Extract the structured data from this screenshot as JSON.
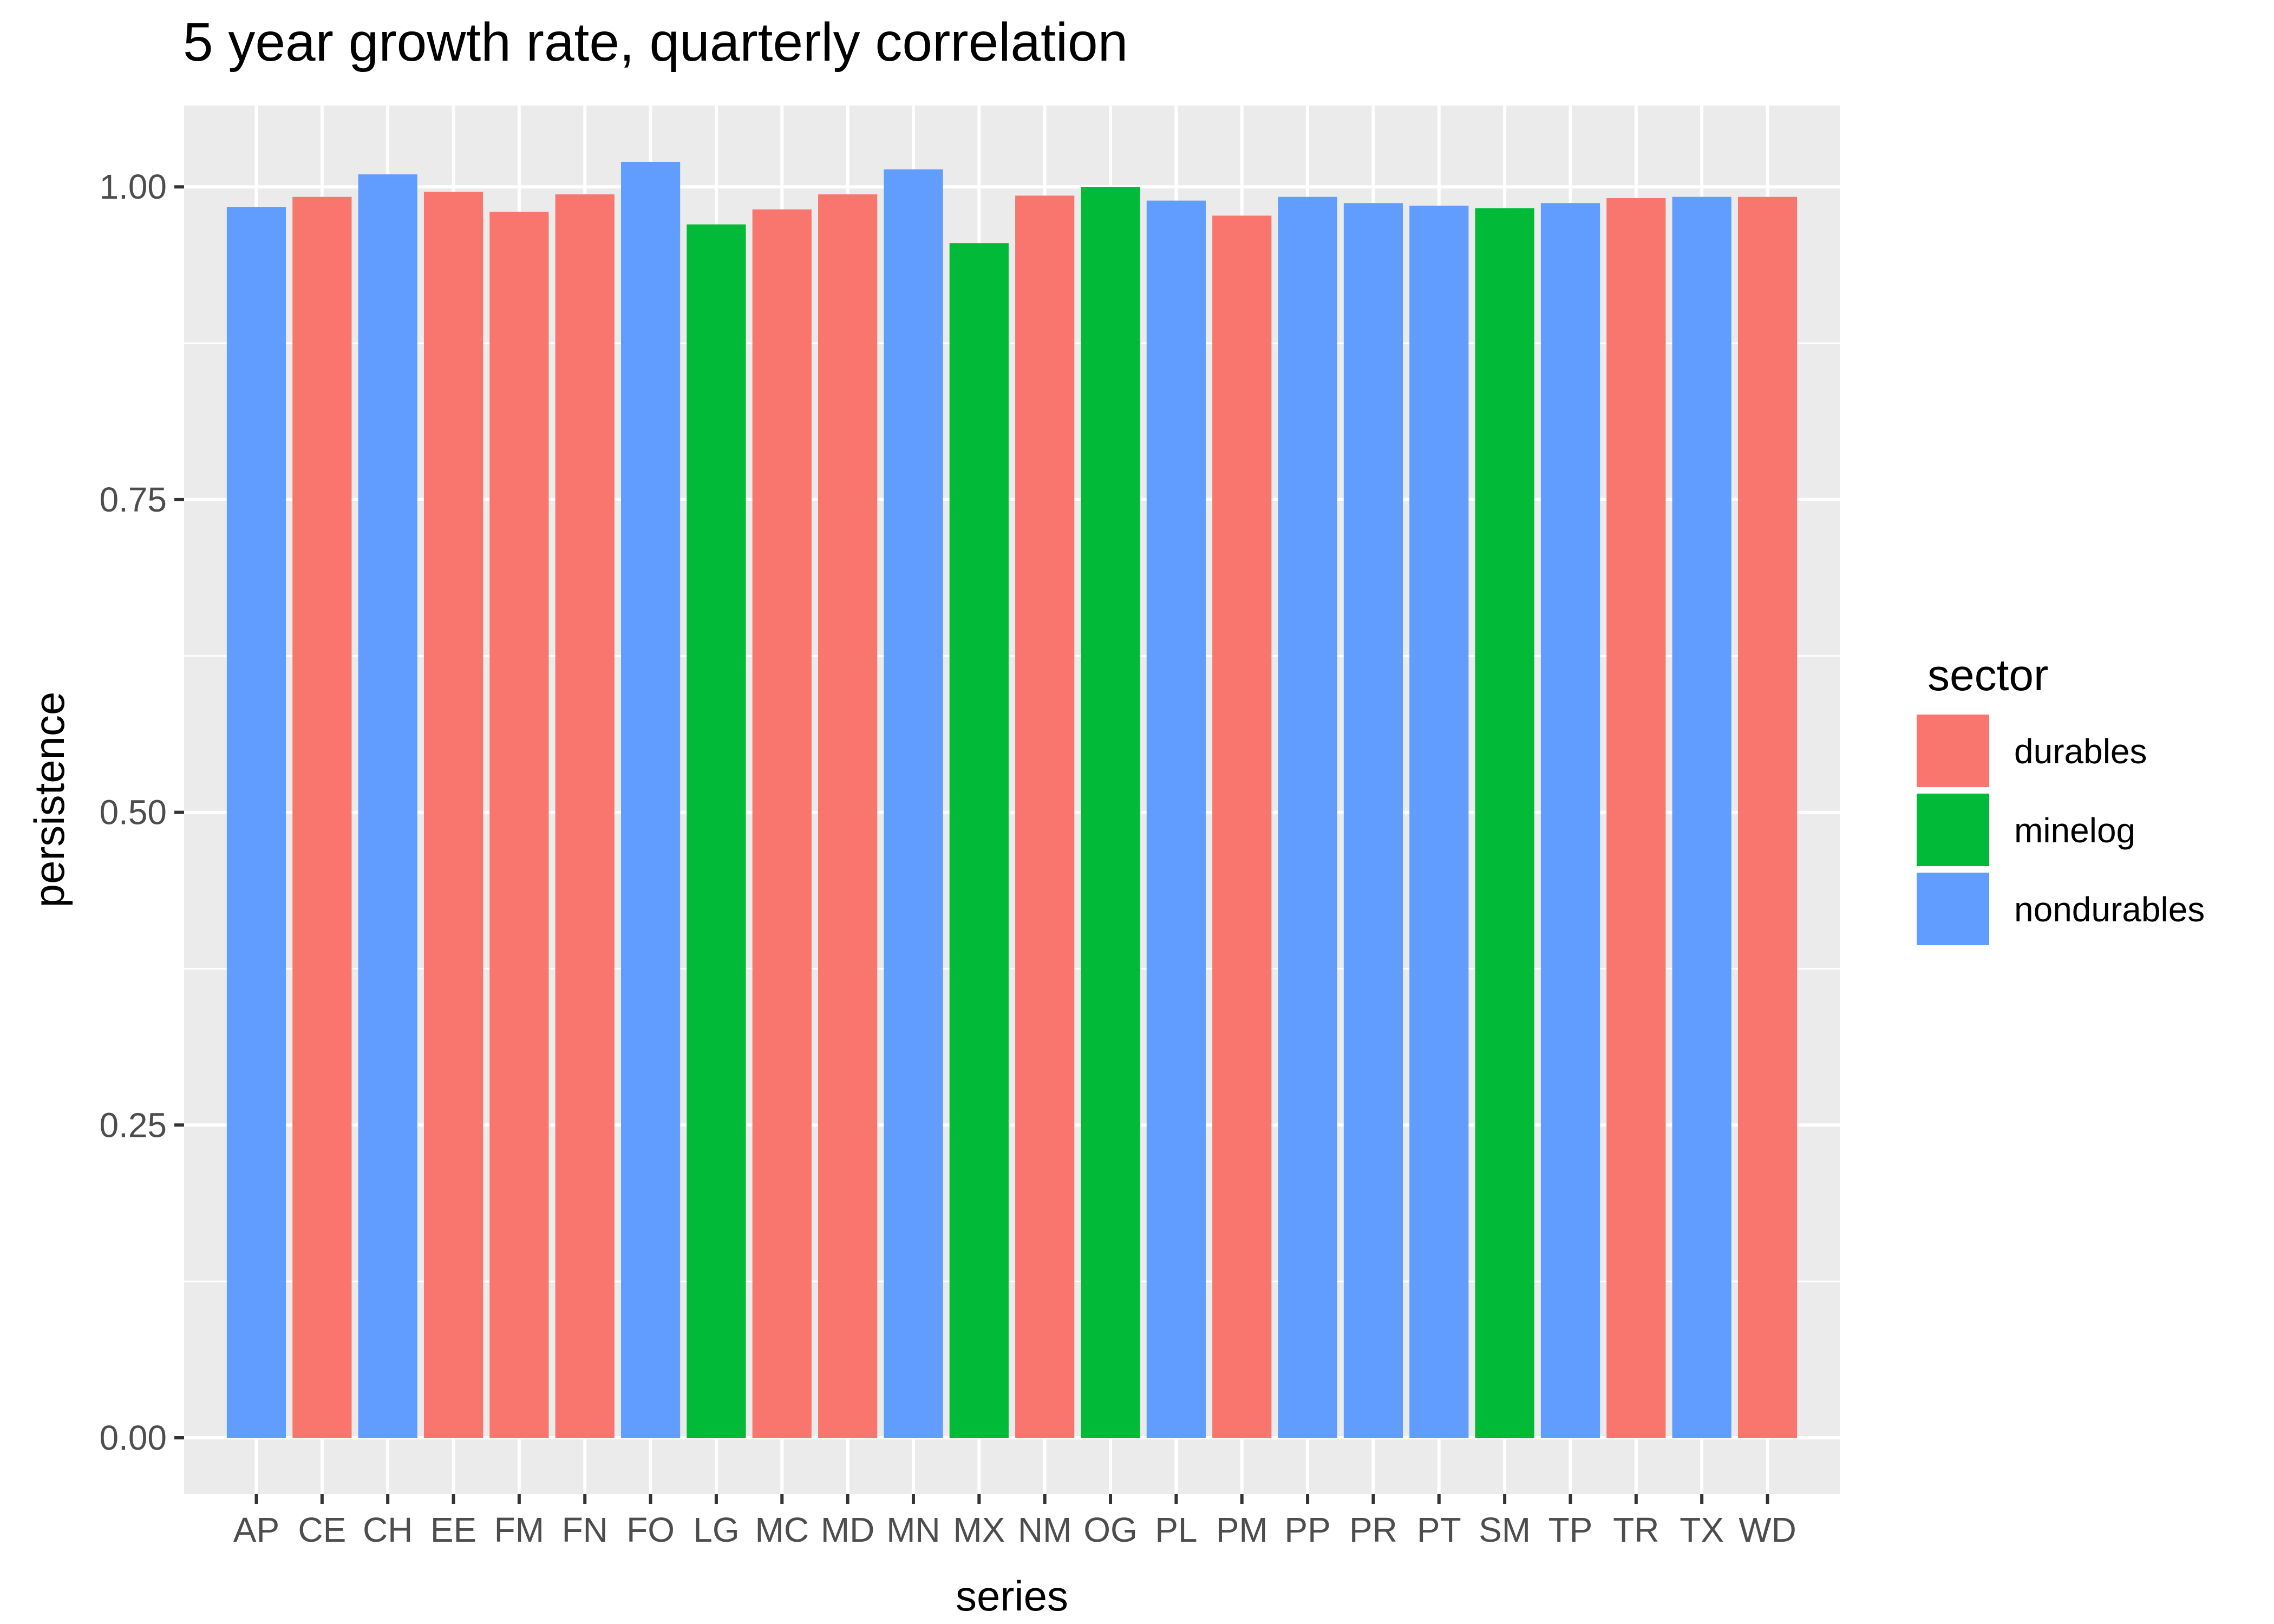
{
  "chart_data": {
    "type": "bar",
    "title": "5 year growth rate, quarterly correlation",
    "xlabel": "series",
    "ylabel": "persistence",
    "ylim": [
      -0.045,
      1.065
    ],
    "yticks": [
      0.0,
      0.25,
      0.5,
      0.75,
      1.0
    ],
    "ytick_labels": [
      "0.00",
      "0.25",
      "0.50",
      "0.75",
      "1.00"
    ],
    "grid": true,
    "legend_position": "right",
    "legend_title": "sector",
    "sectors": [
      {
        "name": "durables",
        "color": "#F8766D"
      },
      {
        "name": "minelog",
        "color": "#00BA38"
      },
      {
        "name": "nondurables",
        "color": "#619CFF"
      }
    ],
    "categories": [
      "AP",
      "CE",
      "CH",
      "EE",
      "FM",
      "FN",
      "FO",
      "LG",
      "MC",
      "MD",
      "MN",
      "MX",
      "NM",
      "OG",
      "PL",
      "PM",
      "PP",
      "PR",
      "PT",
      "SM",
      "TP",
      "TR",
      "TX",
      "WD"
    ],
    "values": [
      0.984,
      0.992,
      1.01,
      0.996,
      0.98,
      0.994,
      1.02,
      0.97,
      0.982,
      0.994,
      1.014,
      0.955,
      0.993,
      1.0,
      0.989,
      0.977,
      0.992,
      0.987,
      0.985,
      0.983,
      0.987,
      0.991,
      0.992,
      0.992
    ],
    "sector_of": [
      "nondurables",
      "durables",
      "nondurables",
      "durables",
      "durables",
      "durables",
      "nondurables",
      "minelog",
      "durables",
      "durables",
      "nondurables",
      "minelog",
      "durables",
      "minelog",
      "nondurables",
      "durables",
      "nondurables",
      "nondurables",
      "nondurables",
      "minelog",
      "nondurables",
      "durables",
      "nondurables",
      "durables"
    ]
  },
  "style": {
    "panel_background": "#EBEBEB",
    "gridline_major": "#FFFFFF",
    "tick_color": "#333333"
  }
}
